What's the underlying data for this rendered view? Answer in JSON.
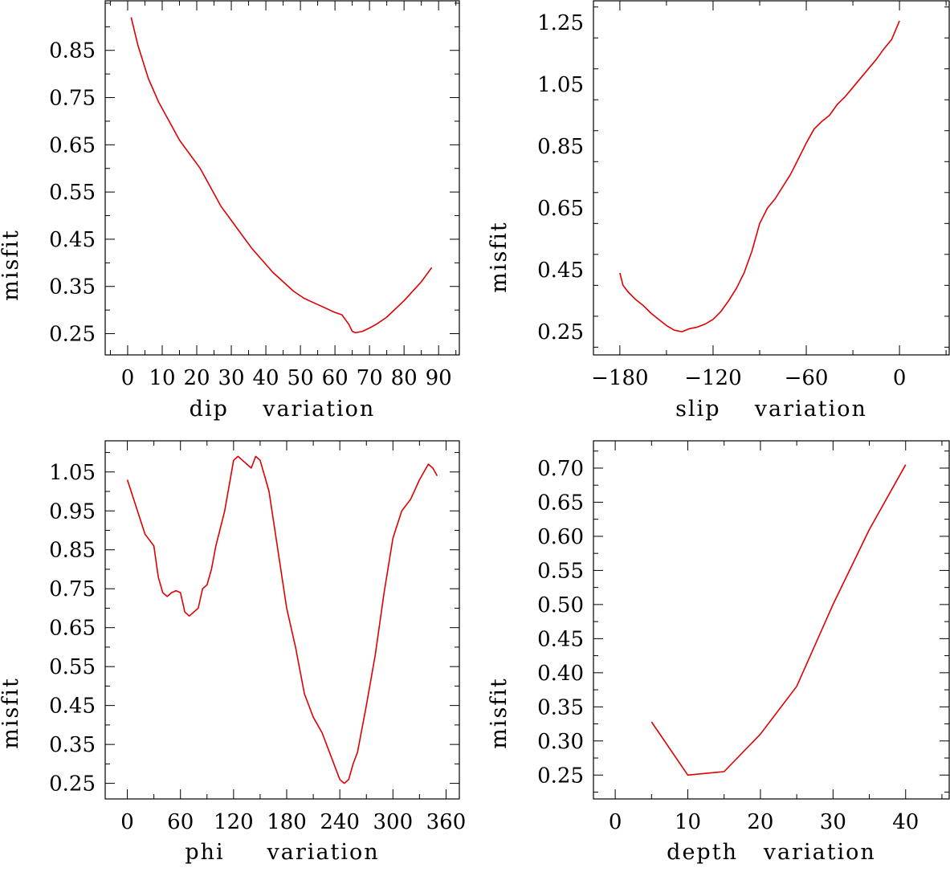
{
  "colors": {
    "series": "#e00000",
    "axes": "#000000",
    "background": "#ffffff"
  },
  "chart_data": [
    {
      "type": "line",
      "title": "",
      "xlabel": "dip    variation",
      "ylabel": "misfit",
      "xlim": [
        -6.5,
        96
      ],
      "ylim": [
        0.205,
        0.955
      ],
      "xticks": [
        0,
        10,
        20,
        30,
        40,
        50,
        60,
        70,
        80,
        90
      ],
      "xtick_labels": [
        "0",
        "10",
        "20",
        "30",
        "40",
        "50",
        "60",
        "70",
        "80",
        "90"
      ],
      "yticks": [
        0.25,
        0.35,
        0.45,
        0.55,
        0.65,
        0.75,
        0.85
      ],
      "ytick_labels": [
        "0.25",
        "0.35",
        "0.45",
        "0.55",
        "0.65",
        "0.75",
        "0.85"
      ],
      "grid": false,
      "series": [
        {
          "x": [
            1,
            3,
            6,
            9,
            12,
            15,
            18,
            21,
            24,
            27,
            30,
            33,
            36,
            39,
            42,
            45,
            48,
            51,
            54,
            57,
            60,
            62,
            64,
            65,
            66,
            68,
            70,
            72,
            75,
            80,
            85,
            88
          ],
          "y": [
            0.92,
            0.86,
            0.79,
            0.74,
            0.7,
            0.66,
            0.63,
            0.6,
            0.56,
            0.52,
            0.49,
            0.46,
            0.43,
            0.405,
            0.38,
            0.36,
            0.34,
            0.325,
            0.315,
            0.305,
            0.295,
            0.29,
            0.27,
            0.255,
            0.252,
            0.255,
            0.262,
            0.27,
            0.285,
            0.32,
            0.36,
            0.39
          ]
        }
      ]
    },
    {
      "type": "line",
      "title": "",
      "xlabel": "slip    variation",
      "ylabel": "misfit",
      "xlim": [
        -197,
        32
      ],
      "ylim": [
        0.175,
        1.32
      ],
      "xticks": [
        -180,
        -120,
        -60,
        0
      ],
      "xtick_labels": [
        "−180",
        "−120",
        "−60",
        "0"
      ],
      "yticks": [
        0.25,
        0.45,
        0.65,
        0.85,
        1.05,
        1.25
      ],
      "ytick_labels": [
        "0.25",
        "0.45",
        "0.65",
        "0.85",
        "1.05",
        "1.25"
      ],
      "grid": false,
      "series": [
        {
          "x": [
            -180,
            -178,
            -175,
            -170,
            -165,
            -160,
            -155,
            -150,
            -145,
            -140,
            -135,
            -130,
            -125,
            -120,
            -115,
            -110,
            -105,
            -100,
            -95,
            -90,
            -85,
            -80,
            -75,
            -70,
            -65,
            -60,
            -55,
            -50,
            -45,
            -40,
            -35,
            -30,
            -25,
            -20,
            -15,
            -10,
            -5,
            0
          ],
          "y": [
            0.44,
            0.4,
            0.38,
            0.355,
            0.335,
            0.31,
            0.29,
            0.27,
            0.255,
            0.25,
            0.26,
            0.265,
            0.275,
            0.29,
            0.315,
            0.35,
            0.39,
            0.44,
            0.51,
            0.6,
            0.65,
            0.68,
            0.72,
            0.76,
            0.81,
            0.86,
            0.905,
            0.93,
            0.95,
            0.985,
            1.01,
            1.04,
            1.07,
            1.1,
            1.13,
            1.165,
            1.195,
            1.255
          ]
        }
      ]
    },
    {
      "type": "line",
      "title": "",
      "xlabel": "phi     variation",
      "ylabel": "misfit",
      "xlim": [
        -25,
        375
      ],
      "ylim": [
        0.21,
        1.13
      ],
      "xticks": [
        0,
        60,
        120,
        180,
        240,
        300,
        360
      ],
      "xtick_labels": [
        "0",
        "60",
        "120",
        "180",
        "240",
        "300",
        "360"
      ],
      "yticks": [
        0.25,
        0.35,
        0.45,
        0.55,
        0.65,
        0.75,
        0.85,
        0.95,
        1.05
      ],
      "ytick_labels": [
        "0.25",
        "0.35",
        "0.45",
        "0.55",
        "0.65",
        "0.75",
        "0.85",
        "0.95",
        "1.05"
      ],
      "grid": false,
      "series": [
        {
          "x": [
            0,
            10,
            20,
            30,
            35,
            40,
            45,
            50,
            55,
            60,
            65,
            70,
            75,
            80,
            85,
            90,
            95,
            100,
            110,
            120,
            125,
            130,
            135,
            140,
            145,
            150,
            155,
            160,
            170,
            180,
            190,
            200,
            210,
            220,
            230,
            240,
            245,
            250,
            255,
            260,
            270,
            280,
            290,
            300,
            310,
            320,
            330,
            340,
            345,
            350
          ],
          "y": [
            1.03,
            0.96,
            0.89,
            0.86,
            0.78,
            0.74,
            0.73,
            0.74,
            0.745,
            0.74,
            0.69,
            0.68,
            0.69,
            0.7,
            0.75,
            0.76,
            0.8,
            0.86,
            0.95,
            1.08,
            1.09,
            1.08,
            1.07,
            1.06,
            1.09,
            1.08,
            1.04,
            1.0,
            0.85,
            0.7,
            0.6,
            0.48,
            0.42,
            0.38,
            0.32,
            0.26,
            0.25,
            0.26,
            0.3,
            0.33,
            0.45,
            0.58,
            0.74,
            0.88,
            0.95,
            0.98,
            1.03,
            1.07,
            1.06,
            1.04
          ]
        }
      ]
    },
    {
      "type": "line",
      "title": "",
      "xlabel": "depth   variation",
      "ylabel": "misfit",
      "xlim": [
        -3,
        46
      ],
      "ylim": [
        0.215,
        0.74
      ],
      "xticks": [
        0,
        10,
        20,
        30,
        40
      ],
      "xtick_labels": [
        "0",
        "10",
        "20",
        "30",
        "40"
      ],
      "yticks": [
        0.25,
        0.3,
        0.35,
        0.4,
        0.45,
        0.5,
        0.55,
        0.6,
        0.65,
        0.7
      ],
      "ytick_labels": [
        "0.25",
        "0.30",
        "0.35",
        "0.40",
        "0.45",
        "0.50",
        "0.55",
        "0.60",
        "0.65",
        "0.70"
      ],
      "grid": false,
      "series": [
        {
          "x": [
            5,
            10,
            15,
            20,
            25,
            30,
            35,
            40
          ],
          "y": [
            0.328,
            0.25,
            0.255,
            0.31,
            0.38,
            0.5,
            0.61,
            0.705
          ]
        }
      ]
    }
  ]
}
